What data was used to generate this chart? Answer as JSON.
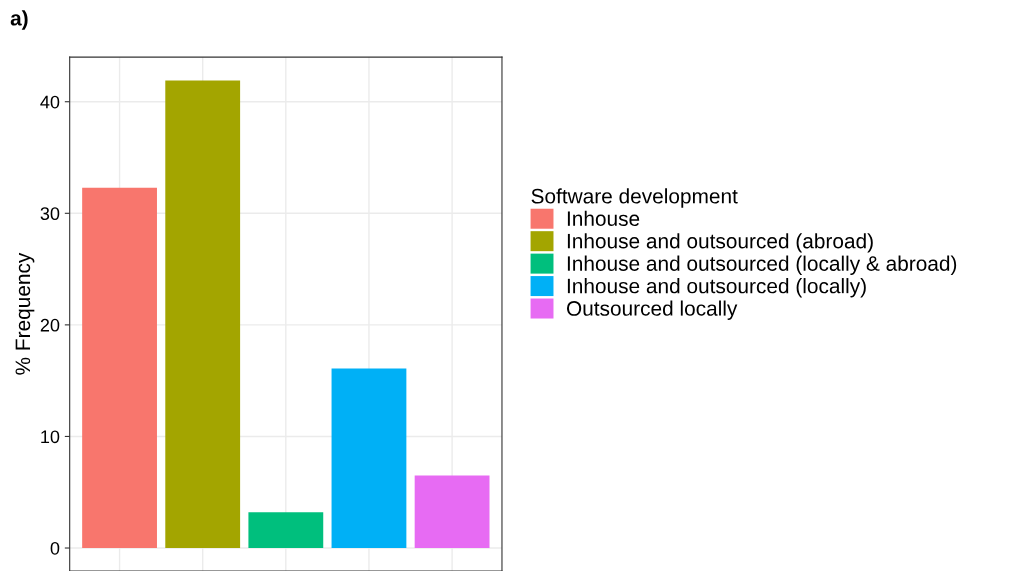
{
  "chart_data": {
    "type": "bar",
    "title": "a)",
    "ylabel": "% Frequency",
    "legend_title": "Software development",
    "categories": [
      null,
      null,
      null,
      null,
      null
    ],
    "series": [
      {
        "name": "Inhouse",
        "color": "#f8766d",
        "values": [
          32.3,
          null,
          null,
          null,
          null
        ]
      },
      {
        "name": "Inhouse and outsourced (abroad)",
        "color": "#a3a500",
        "values": [
          null,
          41.9,
          null,
          null,
          null
        ]
      },
      {
        "name": "Inhouse and outsourced (locally & abroad)",
        "color": "#00bf7d",
        "values": [
          null,
          null,
          3.2,
          null,
          null
        ]
      },
      {
        "name": "Inhouse and outsourced (locally)",
        "color": "#00b0f6",
        "values": [
          null,
          null,
          null,
          16.1,
          null
        ]
      },
      {
        "name": "Outsourced locally",
        "color": "#e76bf3",
        "values": [
          null,
          null,
          null,
          null,
          6.5
        ]
      }
    ],
    "ylim": [
      -2.06,
      44.0
    ],
    "yticks": [
      0,
      10,
      20,
      30,
      40
    ],
    "grid": true,
    "legend": "right"
  }
}
